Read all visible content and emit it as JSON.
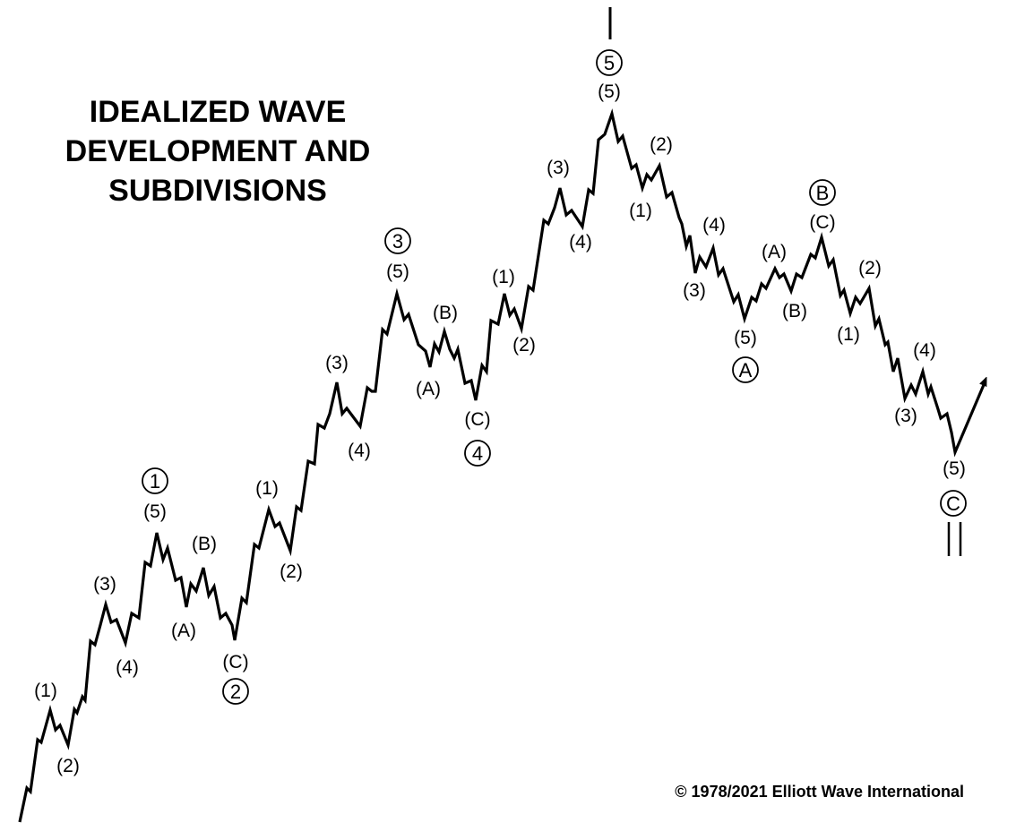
{
  "title_lines": [
    "IDEALIZED WAVE",
    "DEVELOPMENT AND",
    "SUBDIVISIONS"
  ],
  "copyright": "© 1978/2021 Elliott Wave International",
  "colors": {
    "ink": "#000000",
    "background": "#ffffff"
  },
  "circled_labels": [
    "1",
    "2",
    "3",
    "4",
    "5",
    "A",
    "B",
    "C"
  ],
  "sub_labels": [
    "(1)",
    "(2)",
    "(3)",
    "(4)",
    "(5)",
    "(A)",
    "(B)",
    "(C)",
    "(1)",
    "(2)",
    "(3)",
    "(4)",
    "(5)",
    "(A)",
    "(B)",
    "(C)",
    "(1)",
    "(2)",
    "(3)",
    "(4)",
    "(5)",
    "(1)",
    "(2)",
    "(3)",
    "(4)",
    "(5)",
    "(A)",
    "(B)",
    "(C)",
    "(1)",
    "(2)",
    "(3)",
    "(4)",
    "(5)"
  ],
  "markers": {
    "top": "|",
    "bottom": "||"
  }
}
